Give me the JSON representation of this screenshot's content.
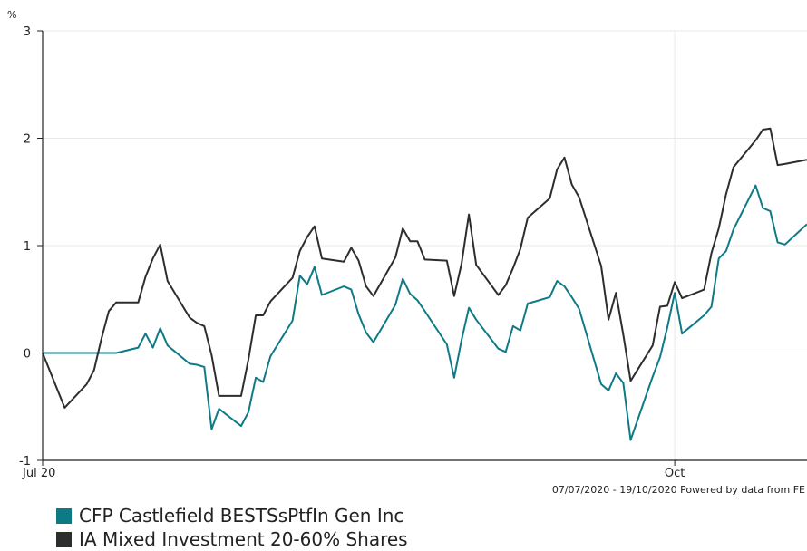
{
  "chart_data": {
    "type": "line",
    "y_unit": "%",
    "ylim": [
      -1,
      3
    ],
    "yticks": [
      -1,
      0,
      1,
      2,
      3
    ],
    "x_ticks": [
      {
        "label": "Jul 20",
        "date": "2020-07-07"
      },
      {
        "label": "Oct",
        "date": "2020-10-01"
      }
    ],
    "xlim": [
      "2020-07-07",
      "2020-10-19"
    ],
    "grid": true,
    "footer": "07/07/2020 - 19/10/2020 Powered by data from FE",
    "x": [
      "2020-07-07",
      "2020-07-08",
      "2020-07-09",
      "2020-07-10",
      "2020-07-13",
      "2020-07-14",
      "2020-07-15",
      "2020-07-16",
      "2020-07-17",
      "2020-07-20",
      "2020-07-21",
      "2020-07-22",
      "2020-07-23",
      "2020-07-24",
      "2020-07-27",
      "2020-07-28",
      "2020-07-29",
      "2020-07-30",
      "2020-07-31",
      "2020-08-03",
      "2020-08-04",
      "2020-08-05",
      "2020-08-06",
      "2020-08-07",
      "2020-08-10",
      "2020-08-11",
      "2020-08-12",
      "2020-08-13",
      "2020-08-14",
      "2020-08-17",
      "2020-08-18",
      "2020-08-19",
      "2020-08-20",
      "2020-08-21",
      "2020-08-24",
      "2020-08-25",
      "2020-08-26",
      "2020-08-27",
      "2020-08-28",
      "2020-08-31",
      "2020-09-01",
      "2020-09-02",
      "2020-09-03",
      "2020-09-04",
      "2020-09-07",
      "2020-09-08",
      "2020-09-09",
      "2020-09-10",
      "2020-09-11",
      "2020-09-14",
      "2020-09-15",
      "2020-09-16",
      "2020-09-17",
      "2020-09-18",
      "2020-09-21",
      "2020-09-22",
      "2020-09-23",
      "2020-09-24",
      "2020-09-25",
      "2020-09-28",
      "2020-09-29",
      "2020-09-30",
      "2020-10-01",
      "2020-10-02",
      "2020-10-05",
      "2020-10-06",
      "2020-10-07",
      "2020-10-08",
      "2020-10-09",
      "2020-10-12",
      "2020-10-13",
      "2020-10-14",
      "2020-10-15",
      "2020-10-16",
      "2020-10-19"
    ],
    "series": [
      {
        "name": "CFP Castlefield BESTSsPtfIn Gen Inc",
        "color": "#0e7a86",
        "values": [
          0,
          0,
          0,
          0,
          0,
          0,
          0,
          0,
          0,
          0.05,
          0.18,
          0.05,
          0.23,
          0.07,
          -0.1,
          -0.11,
          -0.13,
          -0.71,
          -0.52,
          -0.68,
          -0.55,
          -0.23,
          -0.27,
          -0.03,
          0.3,
          0.72,
          0.64,
          0.8,
          0.54,
          0.62,
          0.59,
          0.36,
          0.19,
          0.1,
          0.45,
          0.69,
          0.55,
          0.49,
          0.39,
          0.08,
          -0.23,
          0.12,
          0.42,
          0.31,
          0.04,
          0.01,
          0.25,
          0.21,
          0.46,
          0.52,
          0.67,
          0.62,
          0.52,
          0.41,
          -0.29,
          -0.35,
          -0.19,
          -0.28,
          -0.81,
          -0.22,
          -0.04,
          0.24,
          0.56,
          0.18,
          0.35,
          0.43,
          0.88,
          0.95,
          1.15,
          1.56,
          1.35,
          1.32,
          1.03,
          1.01,
          1.2
        ]
      },
      {
        "name": "IA Mixed Investment 20-60% Shares",
        "color": "#2c2e2e",
        "values": [
          0,
          -0.17,
          -0.34,
          -0.51,
          -0.29,
          -0.16,
          0.13,
          0.39,
          0.47,
          0.47,
          0.71,
          0.88,
          1.01,
          0.67,
          0.33,
          0.28,
          0.25,
          -0.02,
          -0.4,
          -0.4,
          -0.06,
          0.35,
          0.35,
          0.48,
          0.7,
          0.95,
          1.08,
          1.18,
          0.88,
          0.85,
          0.98,
          0.86,
          0.62,
          0.53,
          0.89,
          1.16,
          1.04,
          1.04,
          0.87,
          0.86,
          0.53,
          0.83,
          1.29,
          0.82,
          0.54,
          0.63,
          0.79,
          0.97,
          1.26,
          1.44,
          1.71,
          1.82,
          1.57,
          1.45,
          0.81,
          0.31,
          0.56,
          0.17,
          -0.26,
          0.07,
          0.43,
          0.44,
          0.66,
          0.51,
          0.59,
          0.93,
          1.16,
          1.48,
          1.73,
          1.98,
          2.08,
          2.09,
          1.75,
          1.76,
          1.8
        ]
      }
    ]
  }
}
